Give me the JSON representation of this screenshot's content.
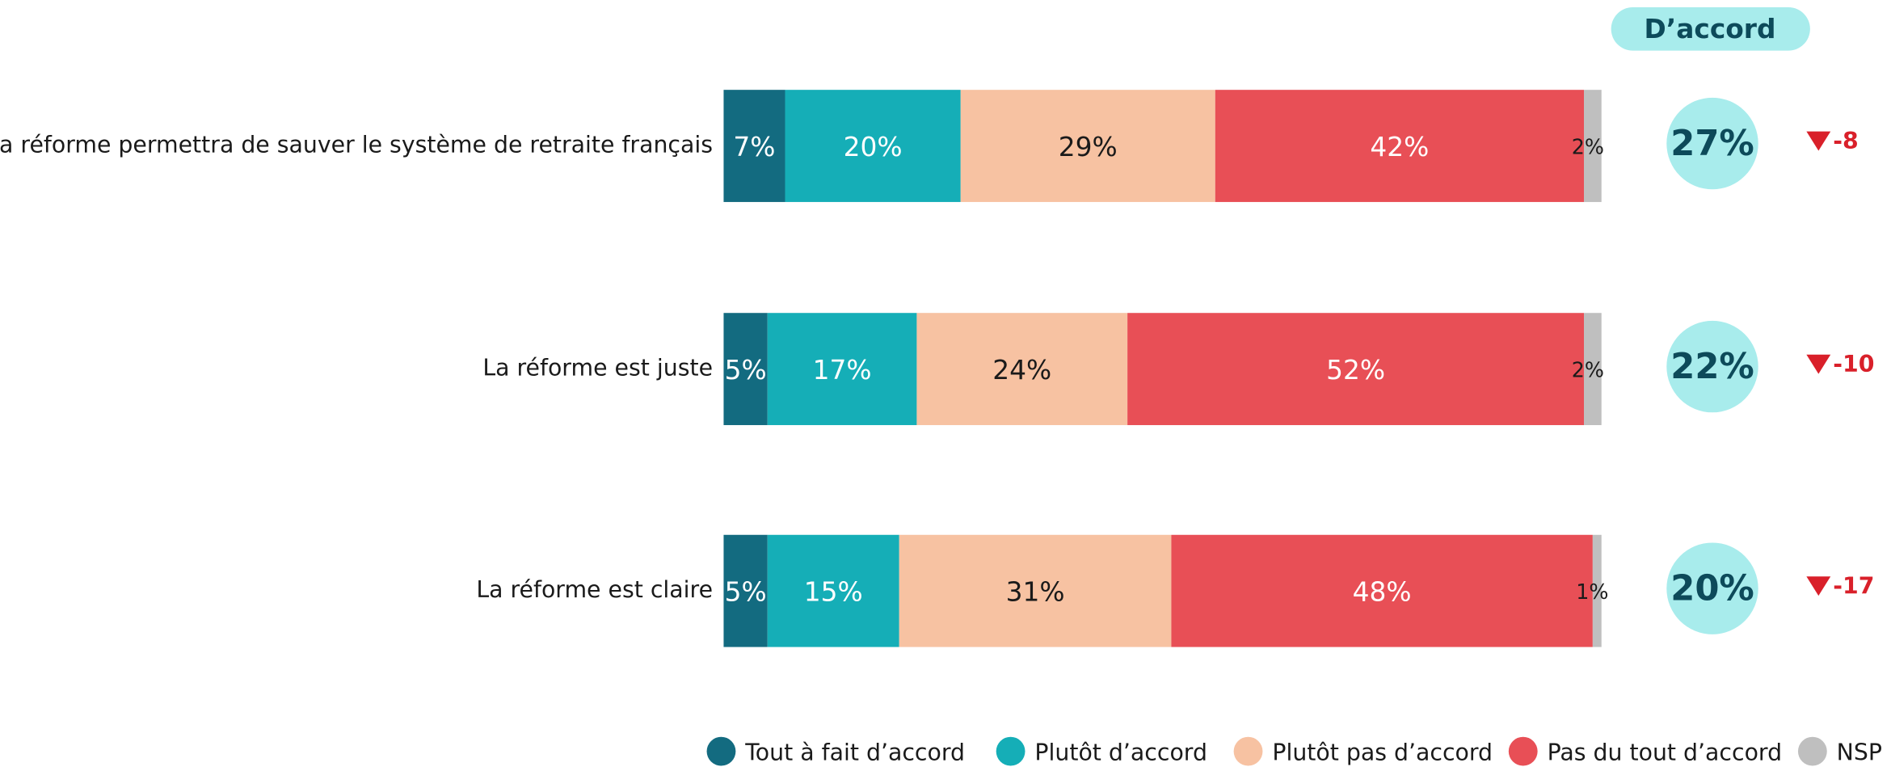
{
  "chart_data": {
    "type": "bar",
    "orientation": "horizontal",
    "stacked": true,
    "categories": [
      "La réforme permettra de sauver le système de retraite français",
      "La réforme est juste",
      "La réforme est claire"
    ],
    "series": [
      {
        "name": "Tout à fait d’accord",
        "color": "#136b80",
        "label_color": "#ffffff",
        "values": [
          7,
          5,
          5
        ],
        "value_labels": [
          "7%",
          "5%",
          "5%"
        ]
      },
      {
        "name": "Plutôt d’accord",
        "color": "#15aeb7",
        "label_color": "#ffffff",
        "values": [
          20,
          17,
          15
        ],
        "value_labels": [
          "20%",
          "17%",
          "15%"
        ]
      },
      {
        "name": "Plutôt pas d’accord",
        "color": "#f7c2a2",
        "label_color": "#1a1a1a",
        "values": [
          29,
          24,
          31
        ],
        "value_labels": [
          "29%",
          "24%",
          "31%"
        ]
      },
      {
        "name": "Pas du tout d’accord",
        "color": "#e84f56",
        "label_color": "#ffffff",
        "values": [
          42,
          52,
          48
        ],
        "value_labels": [
          "42%",
          "52%",
          "48%"
        ]
      },
      {
        "name": "NSP",
        "color": "#bfbfbf",
        "label_color": "#1a1a1a",
        "values": [
          2,
          2,
          1
        ],
        "value_labels": [
          "2%",
          "2%",
          "1%"
        ]
      }
    ],
    "xlim": [
      0,
      100
    ],
    "legend": "bottom",
    "agree": {
      "title": "D’accord",
      "color": "#a8ecec",
      "values": [
        27,
        22,
        20
      ],
      "value_labels": [
        "27%",
        "22%",
        "20%"
      ]
    },
    "change": {
      "color": "#d9202a",
      "values": [
        -8,
        -10,
        -17
      ]
    }
  }
}
